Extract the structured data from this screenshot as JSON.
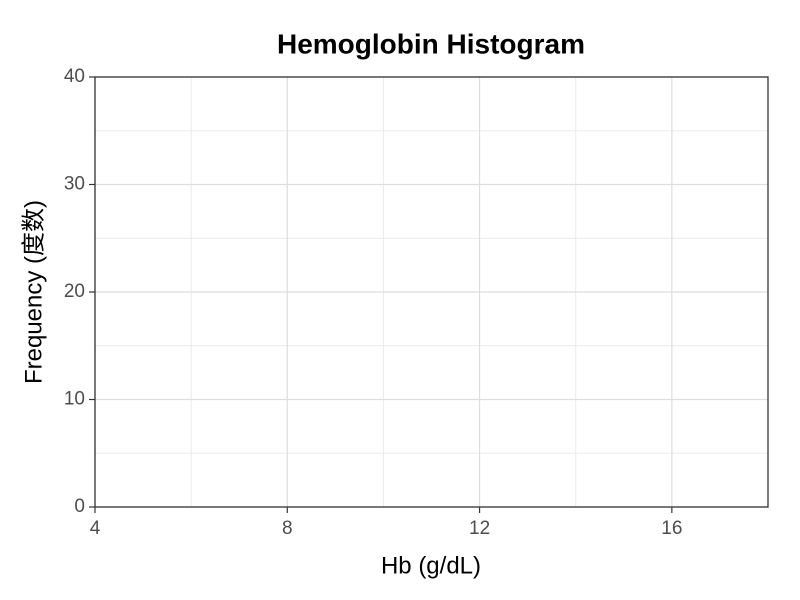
{
  "chart_data": {
    "type": "histogram",
    "title": "Hemoglobin Histogram",
    "xlabel": "Hb (g/dL)",
    "ylabel": "Frequency (度数)",
    "xlim": [
      4,
      18
    ],
    "ylim": [
      0,
      40
    ],
    "xticks": [
      4,
      8,
      12,
      16
    ],
    "yticks": [
      0,
      10,
      20,
      30,
      40
    ],
    "grid": true
  }
}
